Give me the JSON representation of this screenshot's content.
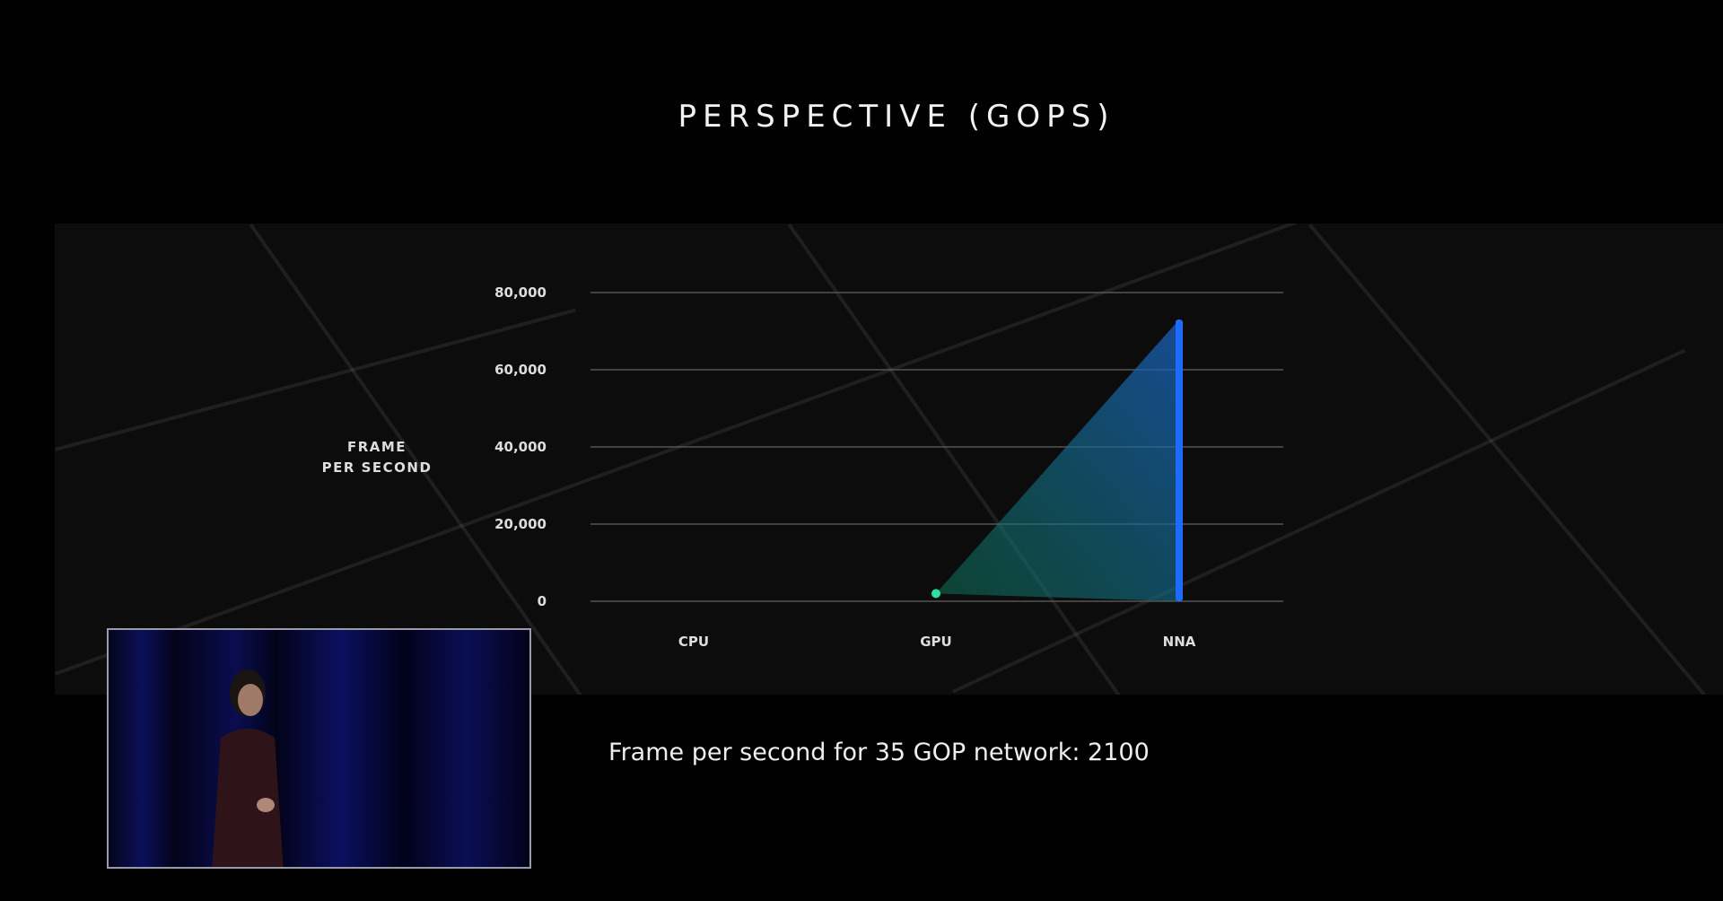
{
  "slide": {
    "title": "PERSPECTIVE (GOPS)",
    "caption": "Frame per second for 35 GOP network: 2100"
  },
  "chart_data": {
    "type": "bar",
    "title": "PERSPECTIVE (GOPS)",
    "ylabel_lines": [
      "FRAME",
      "PER SECOND"
    ],
    "categories": [
      "CPU",
      "GPU",
      "NNA"
    ],
    "values": [
      0,
      2000,
      73000
    ],
    "ylim": [
      0,
      80000
    ],
    "yticks": [
      "0",
      "20,000",
      "40,000",
      "60,000",
      "80,000"
    ],
    "ytick_values": [
      0,
      20000,
      40000,
      60000,
      80000
    ],
    "grid": true,
    "colors": {
      "bar": "#1e6cff",
      "fill": "#1a5fbf",
      "fill_low": "#0f7a5a",
      "gpu_point": "#2ee0a0"
    }
  },
  "video_inset": {
    "label": "presenter video"
  }
}
